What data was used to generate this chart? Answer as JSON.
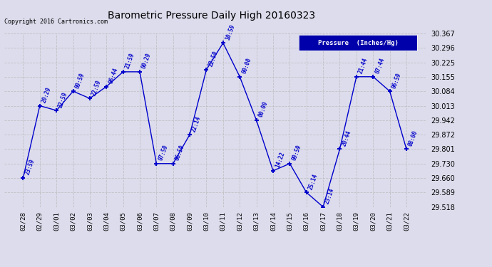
{
  "title": "Barometric Pressure Daily High 20160323",
  "copyright": "Copyright 2016 Cartronics.com",
  "legend_label": "Pressure  (Inches/Hg)",
  "dates": [
    "02/28",
    "02/29",
    "03/01",
    "03/02",
    "03/03",
    "03/04",
    "03/05",
    "03/06",
    "03/07",
    "03/08",
    "03/09",
    "03/10",
    "03/11",
    "03/12",
    "03/13",
    "03/14",
    "03/15",
    "03/16",
    "03/17",
    "03/18",
    "03/19",
    "03/20",
    "03/21",
    "03/22"
  ],
  "values": [
    29.66,
    30.013,
    29.99,
    30.084,
    30.049,
    30.107,
    30.179,
    30.179,
    29.73,
    29.73,
    29.872,
    30.19,
    30.32,
    30.155,
    29.942,
    29.695,
    29.73,
    29.589,
    29.518,
    29.801,
    30.155,
    30.155,
    30.084,
    29.801
  ],
  "times": [
    "23:59",
    "20:29",
    "22:59",
    "09:59",
    "22:59",
    "06:44",
    "21:59",
    "00:29",
    "07:59",
    "06:59",
    "22:14",
    "22:59",
    "10:59",
    "00:00",
    "00:00",
    "14:22",
    "09:59",
    "25:14",
    "23:14",
    "20:44",
    "21:44",
    "07:44",
    "06:59",
    "08:00"
  ],
  "ylim": [
    29.518,
    30.367
  ],
  "yticks": [
    29.518,
    29.589,
    29.66,
    29.73,
    29.801,
    29.872,
    29.942,
    30.013,
    30.084,
    30.155,
    30.225,
    30.296,
    30.367
  ],
  "line_color": "#0000CC",
  "marker_color": "#0000CC",
  "label_color": "#0000CC",
  "bg_color": "#DCDCEC",
  "legend_bg": "#0000AA",
  "legend_fg": "#FFFFFF",
  "title_color": "#000000",
  "copyright_color": "#000000",
  "grid_color": "#BBBBBB"
}
